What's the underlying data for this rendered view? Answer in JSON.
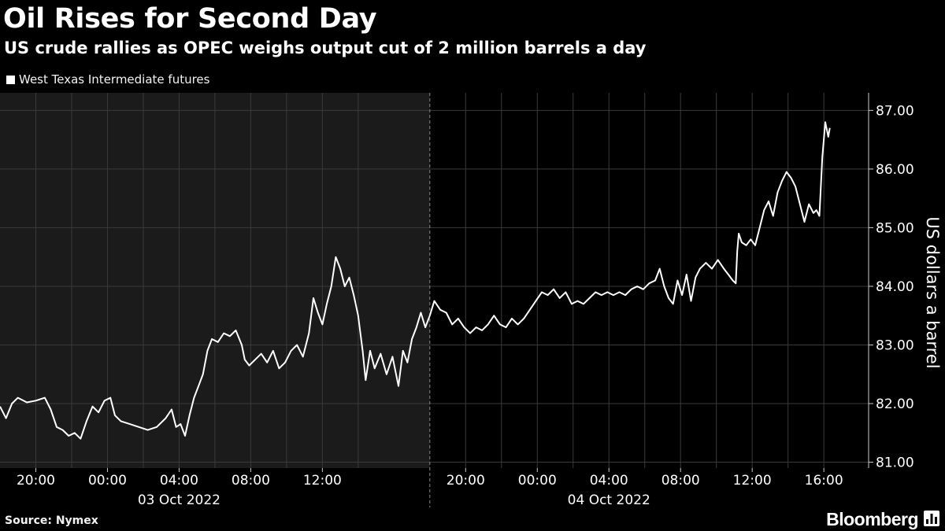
{
  "chart_data": {
    "type": "line",
    "title": "Oil Rises for Second Day",
    "subtitle": "US crude rallies as OPEC weighs output cut of 2 million barrels a day",
    "ylabel": "US dollars a barrel",
    "ylim": [
      80.9,
      87.3
    ],
    "yticks": [
      81,
      82,
      83,
      84,
      85,
      86,
      87
    ],
    "ytick_labels": [
      "81.00",
      "82.00",
      "83.00",
      "84.00",
      "85.00",
      "86.00",
      "87.00"
    ],
    "xlim": [
      "2022-10-02 18:00",
      "2022-10-04 18:30"
    ],
    "xticks": [
      {
        "t": "2022-10-02 20:00",
        "label": "20:00"
      },
      {
        "t": "2022-10-03 00:00",
        "label": "00:00"
      },
      {
        "t": "2022-10-03 04:00",
        "label": "04:00"
      },
      {
        "t": "2022-10-03 08:00",
        "label": "08:00"
      },
      {
        "t": "2022-10-03 12:00",
        "label": "12:00"
      },
      {
        "t": "2022-10-03 20:00",
        "label": "20:00"
      },
      {
        "t": "2022-10-04 00:00",
        "label": "00:00"
      },
      {
        "t": "2022-10-04 04:00",
        "label": "04:00"
      },
      {
        "t": "2022-10-04 08:00",
        "label": "08:00"
      },
      {
        "t": "2022-10-04 12:00",
        "label": "12:00"
      },
      {
        "t": "2022-10-04 16:00",
        "label": "16:00"
      }
    ],
    "minor_gridlines": [
      "2022-10-02 22:00",
      "2022-10-03 02:00",
      "2022-10-03 06:00",
      "2022-10-03 10:00",
      "2022-10-03 14:00",
      "2022-10-03 22:00",
      "2022-10-04 02:00",
      "2022-10-04 06:00",
      "2022-10-04 10:00",
      "2022-10-04 14:00"
    ],
    "day_labels": [
      {
        "t": "2022-10-03 04:00",
        "label": "03 Oct 2022"
      },
      {
        "t": "2022-10-04 04:00",
        "label": "04 Oct 2022"
      }
    ],
    "day_separator": "2022-10-03 18:00",
    "shaded_session": [
      "2022-10-02 18:00",
      "2022-10-03 18:00"
    ],
    "grid": true,
    "series": [
      {
        "name": "West Texas Intermediate futures",
        "color": "#ffffff",
        "points": [
          [
            "2022-10-02 18:00",
            81.95
          ],
          [
            "2022-10-02 18:20",
            81.75
          ],
          [
            "2022-10-02 18:40",
            82.0
          ],
          [
            "2022-10-02 19:00",
            82.1
          ],
          [
            "2022-10-02 19:30",
            82.02
          ],
          [
            "2022-10-02 20:00",
            82.05
          ],
          [
            "2022-10-02 20:30",
            82.1
          ],
          [
            "2022-10-02 20:50",
            81.9
          ],
          [
            "2022-10-02 21:10",
            81.6
          ],
          [
            "2022-10-02 21:30",
            81.55
          ],
          [
            "2022-10-02 21:50",
            81.45
          ],
          [
            "2022-10-02 22:10",
            81.5
          ],
          [
            "2022-10-02 22:30",
            81.4
          ],
          [
            "2022-10-02 22:50",
            81.7
          ],
          [
            "2022-10-02 23:10",
            81.95
          ],
          [
            "2022-10-02 23:30",
            81.85
          ],
          [
            "2022-10-02 23:50",
            82.05
          ],
          [
            "2022-10-03 00:10",
            82.1
          ],
          [
            "2022-10-03 00:25",
            81.8
          ],
          [
            "2022-10-03 00:45",
            81.7
          ],
          [
            "2022-10-03 01:15",
            81.65
          ],
          [
            "2022-10-03 01:45",
            81.6
          ],
          [
            "2022-10-03 02:15",
            81.55
          ],
          [
            "2022-10-03 02:45",
            81.6
          ],
          [
            "2022-10-03 03:15",
            81.75
          ],
          [
            "2022-10-03 03:35",
            81.9
          ],
          [
            "2022-10-03 03:50",
            81.6
          ],
          [
            "2022-10-03 04:05",
            81.65
          ],
          [
            "2022-10-03 04:20",
            81.45
          ],
          [
            "2022-10-03 04:35",
            81.8
          ],
          [
            "2022-10-03 04:50",
            82.1
          ],
          [
            "2022-10-03 05:05",
            82.3
          ],
          [
            "2022-10-03 05:20",
            82.5
          ],
          [
            "2022-10-03 05:35",
            82.9
          ],
          [
            "2022-10-03 05:50",
            83.1
          ],
          [
            "2022-10-03 06:10",
            83.05
          ],
          [
            "2022-10-03 06:30",
            83.2
          ],
          [
            "2022-10-03 06:50",
            83.15
          ],
          [
            "2022-10-03 07:10",
            83.25
          ],
          [
            "2022-10-03 07:30",
            83.0
          ],
          [
            "2022-10-03 07:40",
            82.75
          ],
          [
            "2022-10-03 07:55",
            82.65
          ],
          [
            "2022-10-03 08:15",
            82.75
          ],
          [
            "2022-10-03 08:35",
            82.85
          ],
          [
            "2022-10-03 08:55",
            82.7
          ],
          [
            "2022-10-03 09:15",
            82.9
          ],
          [
            "2022-10-03 09:35",
            82.6
          ],
          [
            "2022-10-03 09:55",
            82.7
          ],
          [
            "2022-10-03 10:15",
            82.9
          ],
          [
            "2022-10-03 10:35",
            83.0
          ],
          [
            "2022-10-03 10:55",
            82.8
          ],
          [
            "2022-10-03 11:15",
            83.2
          ],
          [
            "2022-10-03 11:30",
            83.8
          ],
          [
            "2022-10-03 11:45",
            83.55
          ],
          [
            "2022-10-03 12:00",
            83.35
          ],
          [
            "2022-10-03 12:15",
            83.7
          ],
          [
            "2022-10-03 12:30",
            84.0
          ],
          [
            "2022-10-03 12:45",
            84.5
          ],
          [
            "2022-10-03 13:00",
            84.3
          ],
          [
            "2022-10-03 13:15",
            84.0
          ],
          [
            "2022-10-03 13:30",
            84.15
          ],
          [
            "2022-10-03 13:45",
            83.85
          ],
          [
            "2022-10-03 14:00",
            83.5
          ],
          [
            "2022-10-03 14:15",
            82.9
          ],
          [
            "2022-10-03 14:25",
            82.4
          ],
          [
            "2022-10-03 14:40",
            82.9
          ],
          [
            "2022-10-03 14:55",
            82.6
          ],
          [
            "2022-10-03 15:15",
            82.85
          ],
          [
            "2022-10-03 15:35",
            82.5
          ],
          [
            "2022-10-03 15:55",
            82.8
          ],
          [
            "2022-10-03 16:15",
            82.3
          ],
          [
            "2022-10-03 16:30",
            82.9
          ],
          [
            "2022-10-03 16:45",
            82.7
          ],
          [
            "2022-10-03 17:00",
            83.1
          ],
          [
            "2022-10-03 17:15",
            83.3
          ],
          [
            "2022-10-03 17:30",
            83.55
          ],
          [
            "2022-10-03 17:45",
            83.3
          ],
          [
            "2022-10-03 18:00",
            83.5
          ],
          [
            "2022-10-03 18:15",
            83.75
          ],
          [
            "2022-10-03 18:35",
            83.6
          ],
          [
            "2022-10-03 18:55",
            83.55
          ],
          [
            "2022-10-03 19:15",
            83.35
          ],
          [
            "2022-10-03 19:35",
            83.45
          ],
          [
            "2022-10-03 19:55",
            83.3
          ],
          [
            "2022-10-03 20:15",
            83.2
          ],
          [
            "2022-10-03 20:35",
            83.3
          ],
          [
            "2022-10-03 20:55",
            83.25
          ],
          [
            "2022-10-03 21:15",
            83.35
          ],
          [
            "2022-10-03 21:35",
            83.5
          ],
          [
            "2022-10-03 21:55",
            83.35
          ],
          [
            "2022-10-03 22:15",
            83.3
          ],
          [
            "2022-10-03 22:35",
            83.45
          ],
          [
            "2022-10-03 22:55",
            83.35
          ],
          [
            "2022-10-03 23:15",
            83.45
          ],
          [
            "2022-10-03 23:35",
            83.6
          ],
          [
            "2022-10-03 23:55",
            83.75
          ],
          [
            "2022-10-04 00:15",
            83.9
          ],
          [
            "2022-10-04 00:35",
            83.85
          ],
          [
            "2022-10-04 00:55",
            83.95
          ],
          [
            "2022-10-04 01:15",
            83.8
          ],
          [
            "2022-10-04 01:35",
            83.9
          ],
          [
            "2022-10-04 01:55",
            83.7
          ],
          [
            "2022-10-04 02:15",
            83.75
          ],
          [
            "2022-10-04 02:35",
            83.7
          ],
          [
            "2022-10-04 02:55",
            83.8
          ],
          [
            "2022-10-04 03:15",
            83.9
          ],
          [
            "2022-10-04 03:35",
            83.85
          ],
          [
            "2022-10-04 03:55",
            83.9
          ],
          [
            "2022-10-04 04:15",
            83.85
          ],
          [
            "2022-10-04 04:35",
            83.9
          ],
          [
            "2022-10-04 04:55",
            83.85
          ],
          [
            "2022-10-04 05:15",
            83.95
          ],
          [
            "2022-10-04 05:35",
            84.0
          ],
          [
            "2022-10-04 05:55",
            83.95
          ],
          [
            "2022-10-04 06:15",
            84.05
          ],
          [
            "2022-10-04 06:35",
            84.1
          ],
          [
            "2022-10-04 06:50",
            84.3
          ],
          [
            "2022-10-04 07:05",
            84.0
          ],
          [
            "2022-10-04 07:20",
            83.8
          ],
          [
            "2022-10-04 07:35",
            83.7
          ],
          [
            "2022-10-04 07:50",
            84.1
          ],
          [
            "2022-10-04 08:05",
            83.85
          ],
          [
            "2022-10-04 08:20",
            84.2
          ],
          [
            "2022-10-04 08:35",
            83.75
          ],
          [
            "2022-10-04 08:50",
            84.15
          ],
          [
            "2022-10-04 09:05",
            84.3
          ],
          [
            "2022-10-04 09:25",
            84.4
          ],
          [
            "2022-10-04 09:45",
            84.3
          ],
          [
            "2022-10-04 10:05",
            84.45
          ],
          [
            "2022-10-04 10:25",
            84.3
          ],
          [
            "2022-10-04 10:40",
            84.2
          ],
          [
            "2022-10-04 10:55",
            84.1
          ],
          [
            "2022-10-04 11:05",
            84.05
          ],
          [
            "2022-10-04 11:10",
            84.6
          ],
          [
            "2022-10-04 11:15",
            84.9
          ],
          [
            "2022-10-04 11:25",
            84.75
          ],
          [
            "2022-10-04 11:40",
            84.7
          ],
          [
            "2022-10-04 11:55",
            84.8
          ],
          [
            "2022-10-04 12:10",
            84.7
          ],
          [
            "2022-10-04 12:25",
            85.0
          ],
          [
            "2022-10-04 12:40",
            85.3
          ],
          [
            "2022-10-04 12:55",
            85.45
          ],
          [
            "2022-10-04 13:10",
            85.2
          ],
          [
            "2022-10-04 13:25",
            85.6
          ],
          [
            "2022-10-04 13:40",
            85.8
          ],
          [
            "2022-10-04 13:55",
            85.95
          ],
          [
            "2022-10-04 14:10",
            85.85
          ],
          [
            "2022-10-04 14:25",
            85.7
          ],
          [
            "2022-10-04 14:40",
            85.4
          ],
          [
            "2022-10-04 14:55",
            85.1
          ],
          [
            "2022-10-04 15:10",
            85.4
          ],
          [
            "2022-10-04 15:25",
            85.25
          ],
          [
            "2022-10-04 15:35",
            85.3
          ],
          [
            "2022-10-04 15:45",
            85.2
          ],
          [
            "2022-10-04 15:55",
            86.2
          ],
          [
            "2022-10-04 16:05",
            86.8
          ],
          [
            "2022-10-04 16:15",
            86.55
          ],
          [
            "2022-10-04 16:20",
            86.7
          ]
        ]
      }
    ]
  },
  "legend": {
    "label": "West Texas Intermediate futures",
    "color": "#ffffff"
  },
  "footer": {
    "source": "Source: Nymex",
    "brand": "Bloomberg"
  },
  "colors": {
    "background": "#000000",
    "shaded_panel": "#1b1b1b",
    "grid": "#3a3a3a",
    "text": "#ffffff"
  }
}
